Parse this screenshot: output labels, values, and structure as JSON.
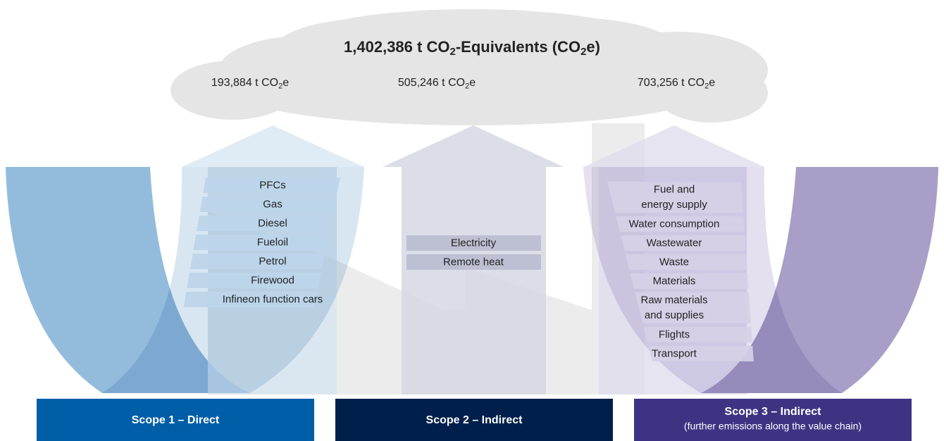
{
  "title": [
    {
      "text": "1,402,386 t CO"
    },
    {
      "text": "2",
      "sub": true
    },
    {
      "text": "-Equivalents (CO"
    },
    {
      "text": "2",
      "sub": true
    },
    {
      "text": "e)"
    }
  ],
  "scopes": [
    {
      "total": [
        {
          "text": "193,884 t CO"
        },
        {
          "text": "2",
          "sub": true
        },
        {
          "text": "e"
        }
      ],
      "items": [
        "PFCs",
        "Gas",
        "Diesel",
        "Fueloil",
        "Petrol",
        "Firewood",
        "Infineon function cars"
      ],
      "label": "Scope 1 – Direct"
    },
    {
      "total": [
        {
          "text": "505,246 t CO"
        },
        {
          "text": "2",
          "sub": true
        },
        {
          "text": "e"
        }
      ],
      "items": [
        "Electricity",
        "Remote heat"
      ],
      "label": "Scope 2 – Indirect"
    },
    {
      "total": [
        {
          "text": "703,256 t CO"
        },
        {
          "text": "2",
          "sub": true
        },
        {
          "text": "e"
        }
      ],
      "items": [
        [
          "Fuel and",
          "energy supply"
        ],
        "Water consumption",
        "Wastewater",
        "Waste",
        "Materials",
        [
          "Raw materials",
          "and supplies"
        ],
        "Flights",
        "Transport"
      ],
      "label": "Scope 3 – Indirect",
      "sublabel": "(further emissions along the value chain)"
    }
  ]
}
